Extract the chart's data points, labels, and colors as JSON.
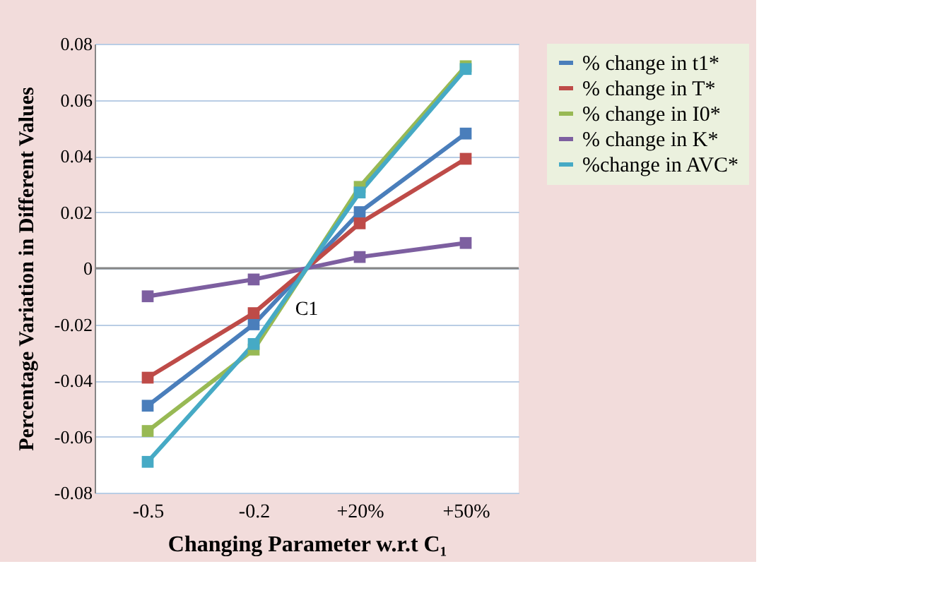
{
  "chart_data": {
    "type": "line",
    "xlabel": "Changing Parameter w.r.t  C₁",
    "ylabel": "Percentage Variation in Different Values",
    "categories": [
      "-0.5",
      "-0.2",
      "+20%",
      "+50%"
    ],
    "series": [
      {
        "name": "%  change in t1*",
        "color": "#4a7ebb",
        "values": [
          -0.049,
          -0.02,
          0.02,
          0.048
        ]
      },
      {
        "name": "% change in T*",
        "color": "#be4b48",
        "values": [
          -0.039,
          -0.016,
          0.016,
          0.039
        ]
      },
      {
        "name": "% change in I0*",
        "color": "#98b954",
        "values": [
          -0.058,
          -0.029,
          0.029,
          0.072
        ]
      },
      {
        "name": "% change in K*",
        "color": "#7d5fa0",
        "values": [
          -0.01,
          -0.004,
          0.004,
          0.009
        ]
      },
      {
        "name": "%change in AVC*",
        "color": "#46aac5",
        "values": [
          -0.069,
          -0.027,
          0.027,
          0.071
        ]
      }
    ],
    "annotations": [
      "C1"
    ],
    "ylim": [
      -0.08,
      0.08
    ],
    "yticks": [
      -0.08,
      -0.06,
      -0.04,
      -0.02,
      0,
      0.02,
      0.04,
      0.06,
      0.08
    ],
    "ref_lines": [
      {
        "axis": "y",
        "value": 0,
        "color": "#868686"
      }
    ],
    "grid": "y",
    "legend": "top right",
    "marker": "square",
    "line_style": "solid"
  }
}
